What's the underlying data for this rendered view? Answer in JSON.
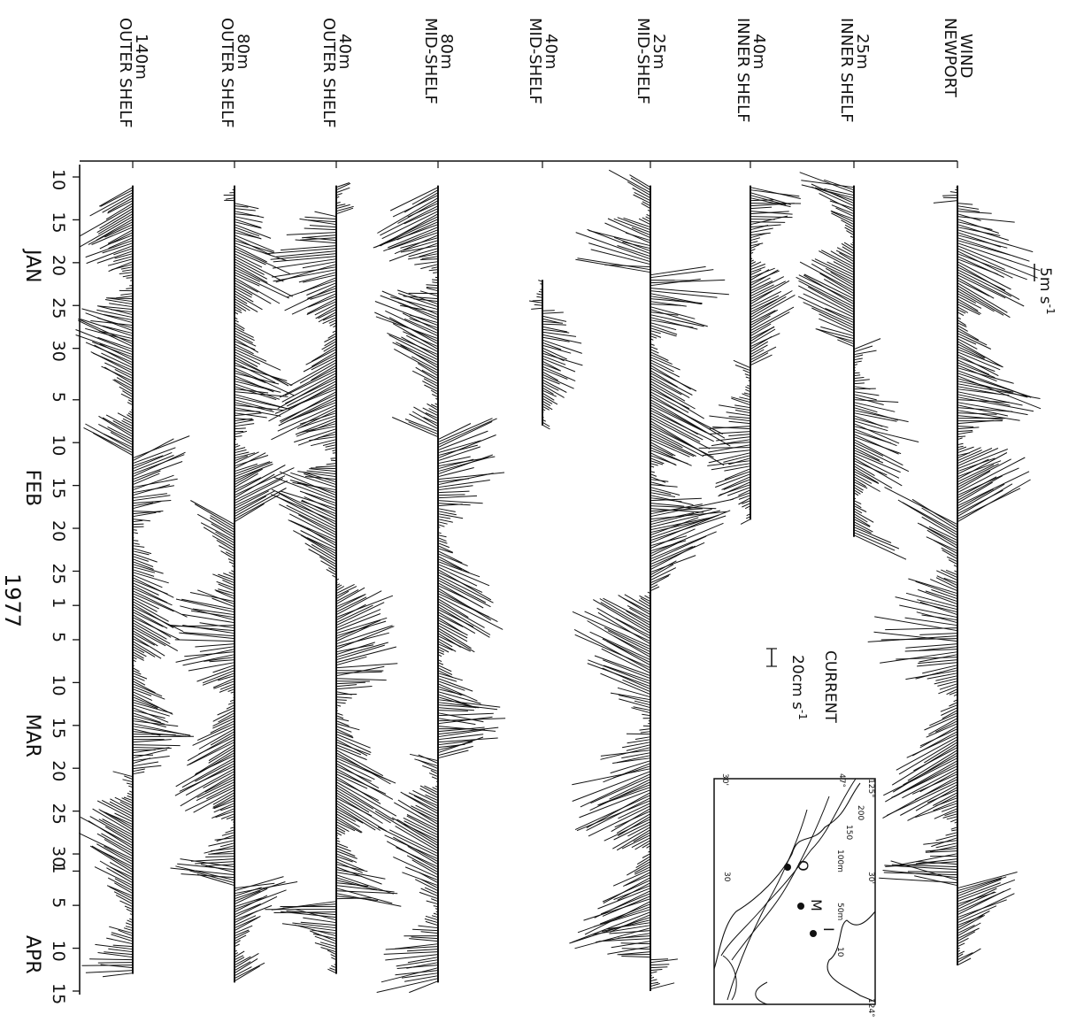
{
  "chart_data": {
    "type": "stick-plot time series (vector)",
    "rotation": "figure rotated 90 degrees clockwise: time runs top to bottom",
    "year": "1977",
    "months": [
      {
        "label": "JAN",
        "ticks": [
          "10",
          "15",
          "20",
          "25",
          "30"
        ]
      },
      {
        "label": "FEB",
        "ticks": [
          "5",
          "10",
          "15",
          "20",
          "25"
        ]
      },
      {
        "label": "MAR",
        "ticks": [
          "1",
          "5",
          "10",
          "15",
          "20",
          "25",
          "30"
        ]
      },
      {
        "label": "APR",
        "ticks": [
          "1",
          "5",
          "10",
          "15"
        ]
      }
    ],
    "tick_labels": [
      "10",
      "15",
      "20",
      "25",
      "30",
      "5",
      "10",
      "15",
      "20",
      "25",
      "1",
      "5",
      "10",
      "15",
      "20",
      "25",
      "30",
      "1",
      "5",
      "10",
      "15"
    ],
    "month_labels": [
      "JAN",
      "FEB",
      "MAR",
      "APR"
    ],
    "wind_scale": {
      "label": "5m s",
      "exponent": "-1"
    },
    "current_scale": {
      "title": "CURRENT",
      "label": "20cm s",
      "exponent": "-1"
    },
    "series": [
      {
        "name": "NEWPORT WIND",
        "label_lines": [
          "NEWPORT",
          "WIND"
        ],
        "start_day": 11,
        "end_day": 102,
        "level": 1.0
      },
      {
        "name": "INNER SHELF 25m",
        "label_lines": [
          "INNER SHELF",
          "25m"
        ],
        "start_day": 11,
        "end_day": 52,
        "level": 0.75
      },
      {
        "name": "INNER SHELF 40m",
        "label_lines": [
          "INNER SHELF",
          "40m"
        ],
        "start_day": 11,
        "end_day": 50,
        "level": 0.6
      },
      {
        "name": "MID-SHELF 25m",
        "label_lines": [
          "MID-SHELF",
          "25m"
        ],
        "start_day": 11,
        "end_day": 105,
        "level": 1.0
      },
      {
        "name": "MID-SHELF 40m",
        "label_lines": [
          "MID-SHELF",
          "40m"
        ],
        "start_day": 22,
        "end_day": 39,
        "level": 0.5
      },
      {
        "name": "MID-SHELF 80m",
        "label_lines": [
          "MID-SHELF",
          "80m"
        ],
        "start_day": 11,
        "end_day": 104,
        "level": 0.8
      },
      {
        "name": "OUTER SHELF 40m",
        "label_lines": [
          "OUTER SHELF",
          "40m"
        ],
        "start_day": 11,
        "end_day": 103,
        "level": 0.85
      },
      {
        "name": "OUTER SHELF 80m",
        "label_lines": [
          "OUTER SHELF",
          "80m"
        ],
        "start_day": 11,
        "end_day": 104,
        "level": 0.75
      },
      {
        "name": "OUTER SHELF 140m",
        "label_lines": [
          "OUTER SHELF",
          "140m"
        ],
        "start_day": 11,
        "end_day": 103,
        "level": 0.7
      }
    ],
    "inset_map": {
      "stations": [
        "O",
        "M",
        "I"
      ],
      "depth_labels": [
        "200",
        "150",
        "100m",
        "50m",
        "10"
      ],
      "lat_lon_labels": [
        "125°",
        "124°",
        "47°",
        "30'",
        "30'",
        "30",
        "124°",
        "124°",
        "47°",
        "30'",
        "30'",
        "125°"
      ]
    }
  }
}
